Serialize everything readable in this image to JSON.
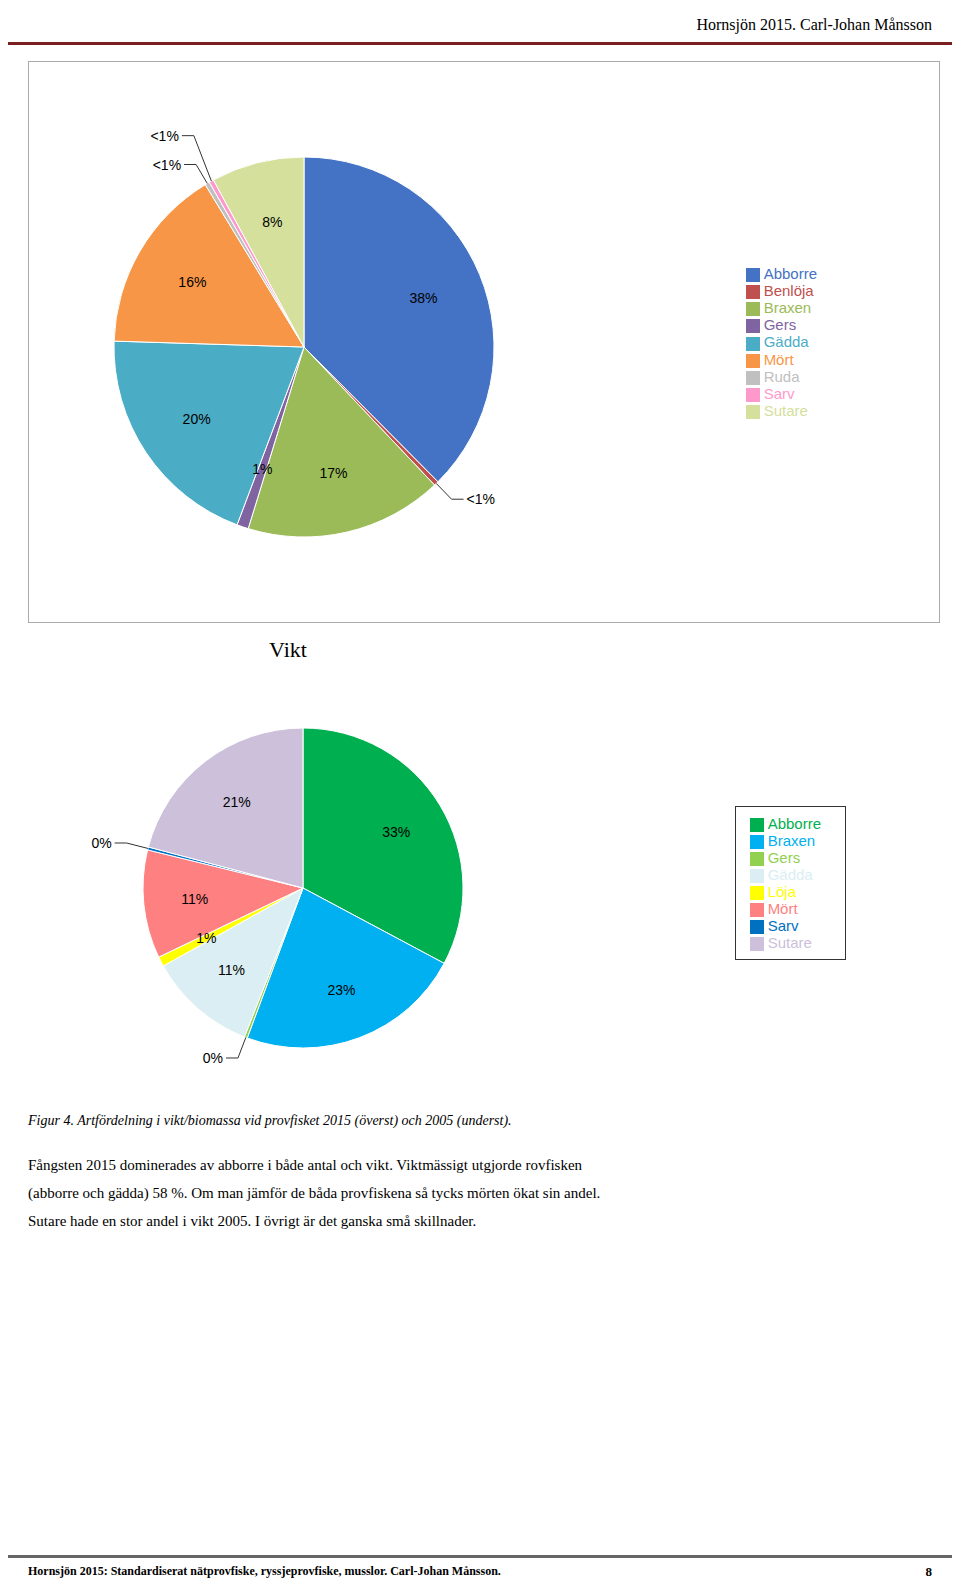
{
  "chart_data": [
    {
      "type": "pie",
      "annotations": [
        "Hornsjön 2015. Carl-Johan Månsson"
      ],
      "categories": [
        "Abborre",
        "Benlöja",
        "Braxen",
        "Gers",
        "Gädda",
        "Mört",
        "Ruda",
        "Sarv",
        "Sutare"
      ],
      "values": [
        38,
        0.4,
        17,
        1,
        20,
        16,
        0.4,
        0.4,
        8
      ],
      "value_labels": [
        "38%",
        "<1%",
        "17%",
        "1%",
        "20%",
        "16%",
        "<1%",
        "<1%",
        "8%"
      ],
      "colors": [
        "#4472C4",
        "#C0504D",
        "#9BBB59",
        "#8064A2",
        "#4BACC6",
        "#F79646",
        "#C0C0C0",
        "#FF99CC",
        "#D4E09B"
      ],
      "data_labels": true,
      "legend": "right"
    },
    {
      "type": "pie",
      "title": "Vikt",
      "annotations": [
        "Figur 4. Artfördelning i vikt/biomassa vid provfisket 2015 (överst) och 2005 (underst).",
        "Fångsten 2015 dominerades av abborre i både antal och vikt. Viktmässigt utgjorde rovfisken",
        "(abborre och gädda) 58 %. Om man jämför de båda provfiskena så tycks mörten ökat sin andel.",
        "Sutare hade en stor andel i vikt 2005. I övrigt är det ganska små skillnader.",
        "Hornsjön 2015: Standardiserat nätprovfiske, ryssjeprovfiske, musslor. Carl-Johan Månsson.",
        "8"
      ],
      "categories": [
        "Abborre",
        "Braxen",
        "Gers",
        "Gädda",
        "Löja",
        "Mört",
        "Sarv",
        "Sutare"
      ],
      "values": [
        33,
        23,
        0.3,
        11,
        1,
        11,
        0.3,
        21
      ],
      "value_labels": [
        "33%",
        "23%",
        "0%",
        "11%",
        "1%",
        "11%",
        "0%",
        "21%"
      ],
      "colors": [
        "#00B050",
        "#00B0F0",
        "#92D050",
        "#DAEEF3",
        "#FFFF00",
        "#FF8080",
        "#0070C0",
        "#CCC0DA"
      ],
      "data_labels": true,
      "legend": "right"
    }
  ]
}
